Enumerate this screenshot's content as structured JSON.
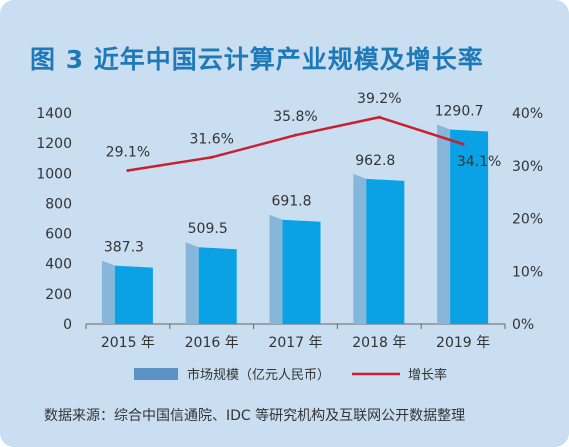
{
  "title": "图 3  近年中国云计算产业规模及增长率",
  "source": "数据来源：综合中国信通院、IDC 等研究机构及互联网公开数据整理",
  "colors": {
    "background": "#c9dff1",
    "title": "#1f79b8",
    "bar_front": "#0aa2e4",
    "bar_side": "#86b6da",
    "line": "#c8202f",
    "legend_bar": "#5c93c6"
  },
  "chart_data": {
    "type": "bar",
    "title": "图 3  近年中国云计算产业规模及增长率",
    "categories": [
      "2015 年",
      "2016 年",
      "2017 年",
      "2018 年",
      "2019 年"
    ],
    "series": [
      {
        "name": "市场规模（亿元人民币）",
        "type": "bar",
        "axis": "left",
        "values": [
          387.3,
          509.5,
          691.8,
          962.8,
          1290.7
        ],
        "labels": [
          "387.3",
          "509.5",
          "691.8",
          "962.8",
          "1290.7"
        ]
      },
      {
        "name": "增长率",
        "type": "line",
        "axis": "right",
        "values": [
          29.1,
          31.6,
          35.8,
          39.2,
          34.1
        ],
        "labels": [
          "29.1%",
          "31.6%",
          "35.8%",
          "39.2%",
          "34.1%"
        ]
      }
    ],
    "y_left": {
      "range": [
        0,
        1400
      ],
      "ticks": [
        0,
        200,
        400,
        600,
        800,
        1000,
        1200,
        1400
      ],
      "tick_labels": [
        "0",
        "200",
        "400",
        "600",
        "800",
        "1000",
        "1200",
        "1400"
      ]
    },
    "y_right": {
      "range": [
        0,
        40
      ],
      "ticks": [
        0,
        10,
        20,
        30,
        40
      ],
      "tick_labels": [
        "0%",
        "10%",
        "20%",
        "30%",
        "40%"
      ]
    },
    "legend": {
      "position": "bottom",
      "items": [
        "市场规模（亿元人民币）",
        "增长率"
      ]
    },
    "grid": false
  }
}
